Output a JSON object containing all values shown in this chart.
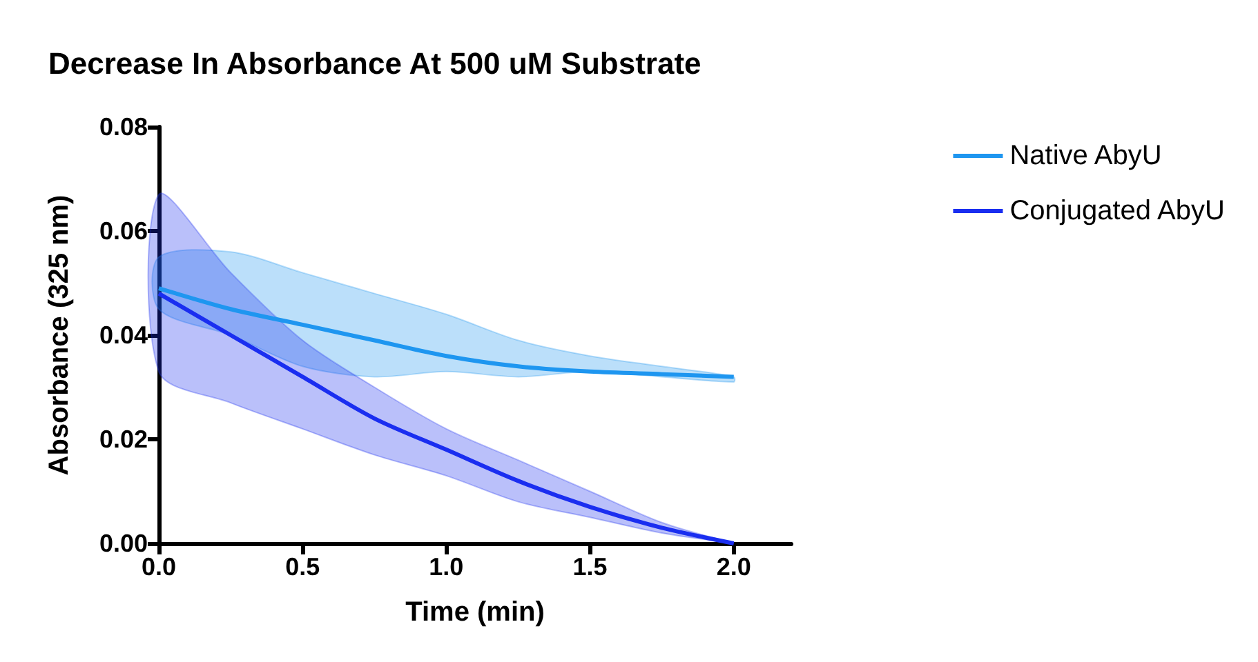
{
  "chart_data": {
    "type": "line",
    "title": "Decrease In Absorbance At 500 uM Substrate",
    "xlabel": "Time (min)",
    "ylabel": "Absorbance (325 nm)",
    "x": [
      0,
      0.25,
      0.5,
      0.75,
      1.0,
      1.25,
      1.5,
      1.75,
      2.0
    ],
    "series": [
      {
        "name": "Native AbyU",
        "color": "#1e96f0",
        "values": [
          0.049,
          0.045,
          0.042,
          0.039,
          0.036,
          0.034,
          0.033,
          0.0325,
          0.032
        ],
        "lower": [
          0.045,
          0.04,
          0.034,
          0.032,
          0.033,
          0.032,
          0.033,
          0.032,
          0.031
        ],
        "upper": [
          0.055,
          0.056,
          0.052,
          0.048,
          0.044,
          0.039,
          0.036,
          0.034,
          0.032
        ]
      },
      {
        "name": "Conjugated AbyU",
        "color": "#1a2ef0",
        "values": [
          0.048,
          0.04,
          0.032,
          0.024,
          0.018,
          0.012,
          0.007,
          0.003,
          0.0
        ],
        "lower": [
          0.033,
          0.027,
          0.022,
          0.017,
          0.013,
          0.008,
          0.005,
          0.002,
          0.0
        ],
        "upper": [
          0.067,
          0.052,
          0.039,
          0.03,
          0.022,
          0.016,
          0.01,
          0.004,
          0.0
        ]
      }
    ],
    "xlim": [
      0,
      2.2
    ],
    "xticks": [
      {
        "value": 0,
        "label": "0.0"
      },
      0.5,
      {
        "value": 1,
        "label": "1.0"
      },
      1.5,
      {
        "value": 2,
        "label": "2.0"
      }
    ],
    "ylim": [
      0,
      0.08
    ],
    "yticks": [
      {
        "value": 0,
        "label": "0.00"
      },
      {
        "value": 0.02,
        "label": "0.02"
      },
      {
        "value": 0.04,
        "label": "0.04"
      },
      {
        "value": 0.06,
        "label": "0.06"
      },
      {
        "value": 0.08,
        "label": "0.08"
      }
    ],
    "grid": false,
    "legend": "top right",
    "marker": "none",
    "line_style": "solid"
  }
}
